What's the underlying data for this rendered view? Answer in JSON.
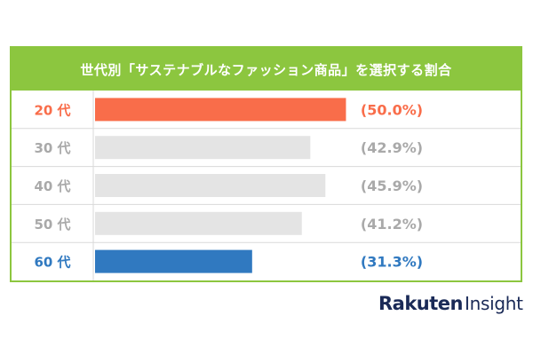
{
  "chart_data": {
    "type": "bar",
    "orientation": "horizontal",
    "title": "世代別「サステナブルなファッション商品」を選択する割合",
    "categories": [
      "20 代",
      "30 代",
      "40 代",
      "50 代",
      "60 代"
    ],
    "values": [
      50.0,
      42.9,
      45.9,
      41.2,
      31.3
    ],
    "value_labels": [
      "(50.0%)",
      "(42.9%)",
      "(45.9%)",
      "(41.2%)",
      "(31.3%)"
    ],
    "unit": "%",
    "highlight": {
      "20 代": "#f96d4a",
      "60 代": "#3079c0"
    },
    "default_bar_color": "#e4e4e4",
    "default_text_color": "#a9a9a9",
    "xlim": [
      0,
      57
    ],
    "grid": false,
    "legend": "none"
  },
  "colors": {
    "frame": "#8cc63f",
    "header_bg": "#8cc63f",
    "header_text": "#ffffff",
    "row_divider": "#d9d9d9"
  },
  "brand": {
    "name_part1": "Rakuten",
    "name_part2": "Insight"
  }
}
